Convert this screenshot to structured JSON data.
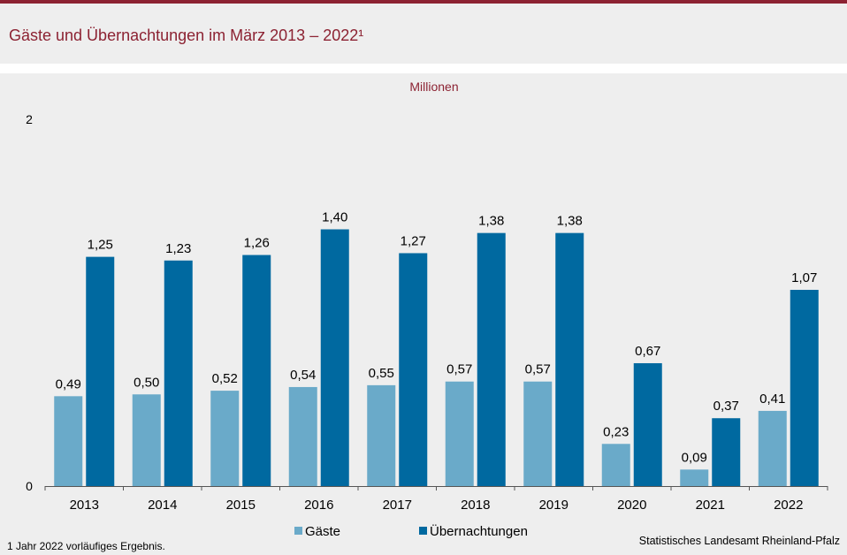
{
  "title": "Gäste und Übernachtungen im März 2013 – 2022¹",
  "footnote": "1 Jahr  2022 vorläufiges  Ergebnis.",
  "source": "Statistisches Landesamt  Rheinland-Pfalz",
  "colors": {
    "accent": "#8c2232",
    "gaeste": "#6aaac9",
    "uebernachtungen": "#0069a0"
  },
  "chart_data": {
    "type": "bar",
    "unit_label": "Millionen",
    "categories": [
      "2013",
      "2014",
      "2015",
      "2016",
      "2017",
      "2018",
      "2019",
      "2020",
      "2021",
      "2022"
    ],
    "series": [
      {
        "name": "Gäste",
        "values": [
          0.49,
          0.5,
          0.52,
          0.54,
          0.55,
          0.57,
          0.57,
          0.23,
          0.09,
          0.41
        ],
        "labels": [
          "0,49",
          "0,50",
          "0,52",
          "0,54",
          "0,55",
          "0,57",
          "0,57",
          "0,23",
          "0,09",
          "0,41"
        ]
      },
      {
        "name": "Übernachtungen",
        "values": [
          1.25,
          1.23,
          1.26,
          1.4,
          1.27,
          1.38,
          1.38,
          0.67,
          0.37,
          1.07
        ],
        "labels": [
          "1,25",
          "1,23",
          "1,26",
          "1,40",
          "1,27",
          "1,38",
          "1,38",
          "0,67",
          "0,37",
          "1,07"
        ]
      }
    ],
    "ylim": [
      0,
      2
    ],
    "yticks": [
      "0",
      "2"
    ],
    "legend": "bottom"
  }
}
